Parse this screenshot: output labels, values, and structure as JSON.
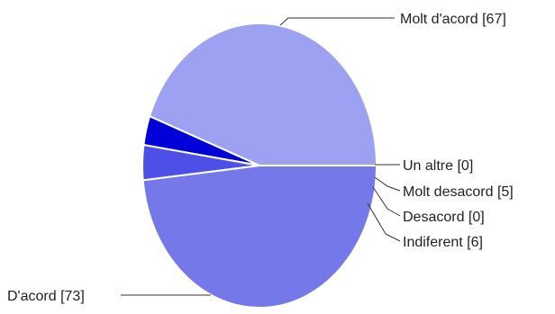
{
  "chart_data": {
    "type": "pie",
    "slices": [
      {
        "label": "Molt d'acord [67]",
        "value": 67,
        "color": "#9da1f1"
      },
      {
        "label": "Un altre [0]",
        "value": 0,
        "color": "#0000d9"
      },
      {
        "label": "Molt desacord [5]",
        "value": 5,
        "color": "#0000d9"
      },
      {
        "label": "Desacord [0]",
        "value": 0,
        "color": "#3d3deb"
      },
      {
        "label": "Indiferent [6]",
        "value": 6,
        "color": "#4d4fe6"
      },
      {
        "label": "D'acord [73]",
        "value": 73,
        "color": "#7478e8"
      }
    ]
  }
}
